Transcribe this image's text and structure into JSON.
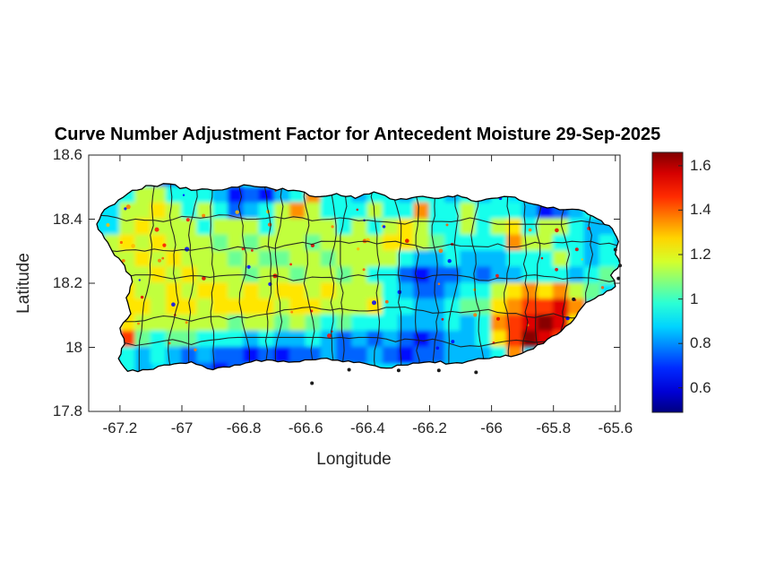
{
  "chart_data": {
    "type": "heatmap",
    "title": "Curve Number Adjustment Factor for Antecedent Moisture 29-Sep-2025",
    "xlabel": "Longitude",
    "ylabel": "Latitude",
    "xlim": [
      -67.301,
      -65.585
    ],
    "ylim": [
      17.8,
      18.6
    ],
    "clim": [
      0.49,
      1.66
    ],
    "colormap": "jet",
    "xticks": [
      -67.2,
      -67.0,
      -66.8,
      -66.6,
      -66.4,
      -66.2,
      -66.0,
      -65.8,
      -65.6
    ],
    "xtick_labels": [
      "-67.2",
      "-67",
      "-66.8",
      "-66.6",
      "-66.4",
      "-66.2",
      "-66",
      "-65.8",
      "-65.6"
    ],
    "yticks": [
      18.6,
      18.4,
      18.2,
      18.0,
      17.8
    ],
    "ytick_labels": [
      "18.6",
      "18.4",
      "18.2",
      "18",
      "17.8"
    ],
    "colorbar_ticks": [
      1.6,
      1.4,
      1.2,
      1.0,
      0.8,
      0.6
    ],
    "colorbar_tick_labels": [
      "1.6",
      "1.4",
      "1.2",
      "1",
      "0.8",
      "0.6"
    ],
    "grid": {
      "lon0": -67.25,
      "lat0": 18.55,
      "dlon": 0.05,
      "dlat": 0.05,
      "value_codes": {
        "a": 0.55,
        "b": 0.65,
        "c": 0.75,
        "d": 0.85,
        "e": 0.95,
        "f": 1.05,
        "g": 1.15,
        "h": 1.25,
        "i": 1.35,
        "j": 1.45,
        "k": 1.55,
        "l": 1.65
      },
      "rows": [
        "...cceeedeedeeedd.................",
        ".eggeeedbcbdeieedeedeedede........",
        ".gghgegecdegigeeegeeieegeeedbcde..",
        ".ghgggegggeggggegeghgeegegheggedde",
        "ghghgggfgfgggfgggghhgfeeeeiggeeded",
        "gghghgggfgffggfggggeddedddeeegedee",
        ".gghghgggfggfggfgeecbccdcddeeedef.",
        ".hgghghhghghhghgggedccdeeghihigf..",
        ".hhghhghhhhghhgggheeddeffhijjki...",
        ".hggggggfggfgfefeeedddedeijklkh...",
        ".jfeffeeededdedcdcdcbcddehjlkj....",
        ".ededcdccbcbccdccdcbccdddei.......",
        ".ed..ccbc...cccd....cd............"
      ]
    },
    "coastline": [
      [
        -67.275,
        18.385
      ],
      [
        -67.25,
        18.43
      ],
      [
        -67.205,
        18.46
      ],
      [
        -67.16,
        18.49
      ],
      [
        -67.1,
        18.505
      ],
      [
        -67.04,
        18.51
      ],
      [
        -66.97,
        18.49
      ],
      [
        -66.9,
        18.49
      ],
      [
        -66.84,
        18.5
      ],
      [
        -66.78,
        18.505
      ],
      [
        -66.71,
        18.495
      ],
      [
        -66.64,
        18.49
      ],
      [
        -66.57,
        18.47
      ],
      [
        -66.5,
        18.48
      ],
      [
        -66.44,
        18.465
      ],
      [
        -66.38,
        18.485
      ],
      [
        -66.31,
        18.46
      ],
      [
        -66.24,
        18.47
      ],
      [
        -66.17,
        18.465
      ],
      [
        -66.11,
        18.475
      ],
      [
        -66.05,
        18.455
      ],
      [
        -66.0,
        18.465
      ],
      [
        -65.94,
        18.47
      ],
      [
        -65.88,
        18.45
      ],
      [
        -65.82,
        18.435
      ],
      [
        -65.76,
        18.43
      ],
      [
        -65.7,
        18.425
      ],
      [
        -65.645,
        18.395
      ],
      [
        -65.61,
        18.37
      ],
      [
        -65.59,
        18.33
      ],
      [
        -65.6,
        18.29
      ],
      [
        -65.585,
        18.26
      ],
      [
        -65.615,
        18.225
      ],
      [
        -65.6,
        18.19
      ],
      [
        -65.64,
        18.165
      ],
      [
        -65.695,
        18.14
      ],
      [
        -65.72,
        18.11
      ],
      [
        -65.745,
        18.075
      ],
      [
        -65.775,
        18.05
      ],
      [
        -65.82,
        18.025
      ],
      [
        -65.865,
        17.995
      ],
      [
        -65.92,
        17.975
      ],
      [
        -65.99,
        17.97
      ],
      [
        -66.06,
        17.96
      ],
      [
        -66.13,
        17.95
      ],
      [
        -66.2,
        17.955
      ],
      [
        -66.27,
        17.945
      ],
      [
        -66.34,
        17.935
      ],
      [
        -66.41,
        17.95
      ],
      [
        -66.48,
        17.955
      ],
      [
        -66.55,
        17.965
      ],
      [
        -66.62,
        17.955
      ],
      [
        -66.69,
        17.955
      ],
      [
        -66.76,
        17.96
      ],
      [
        -66.83,
        17.945
      ],
      [
        -66.9,
        17.93
      ],
      [
        -66.97,
        17.955
      ],
      [
        -67.04,
        17.945
      ],
      [
        -67.11,
        17.93
      ],
      [
        -67.175,
        17.925
      ],
      [
        -67.205,
        17.965
      ],
      [
        -67.185,
        18.01
      ],
      [
        -67.2,
        18.06
      ],
      [
        -67.165,
        18.105
      ],
      [
        -67.18,
        18.155
      ],
      [
        -67.16,
        18.205
      ],
      [
        -67.185,
        18.255
      ],
      [
        -67.225,
        18.3
      ],
      [
        -67.25,
        18.34
      ]
    ],
    "boundaries": {
      "meridians": [
        -67.11,
        -67.03,
        -66.95,
        -66.88,
        -66.81,
        -66.74,
        -66.67,
        -66.6,
        -66.53,
        -66.46,
        -66.39,
        -66.32,
        -66.25,
        -66.18,
        -66.11,
        -66.04,
        -65.97,
        -65.9,
        -65.83,
        -65.76,
        -65.69
      ],
      "parallels": [
        18.41,
        18.305,
        18.2,
        18.1,
        18.005
      ]
    },
    "islets": [
      [
        -66.58,
        17.888
      ],
      [
        -66.46,
        17.93
      ],
      [
        -66.3,
        17.928
      ],
      [
        -66.17,
        17.928
      ],
      [
        -66.05,
        17.922
      ],
      [
        -65.735,
        18.15
      ],
      [
        -65.6,
        18.305
      ],
      [
        -65.585,
        18.255
      ],
      [
        -65.59,
        18.215
      ]
    ]
  },
  "colors": {
    "axis": "#262626",
    "boundary": "#1a1a1a",
    "coast": "#000000",
    "title": "#000000"
  }
}
